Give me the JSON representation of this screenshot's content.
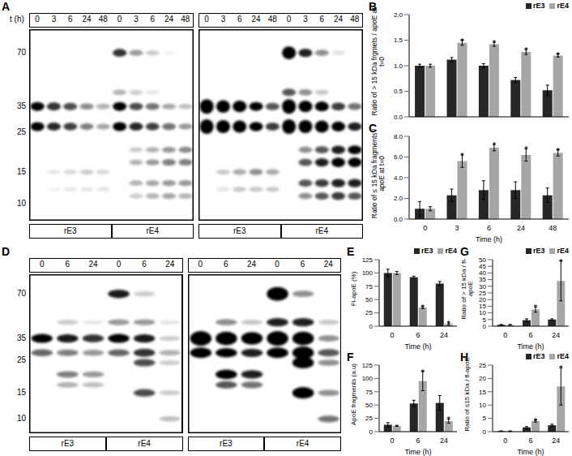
{
  "blots": [
    {
      "panel": "A",
      "time_label": "t (h)",
      "samples": [
        "rE3",
        "rE4"
      ],
      "times": [
        0,
        3,
        6,
        24,
        48
      ],
      "markers": [
        70,
        35,
        25,
        15,
        10
      ]
    },
    {
      "panel": "D",
      "samples": [
        "rE3",
        "rE4"
      ],
      "times": [
        0,
        6,
        24
      ],
      "markers": [
        70,
        35,
        25,
        15,
        10
      ]
    }
  ],
  "chart_data": [
    {
      "panel": "B",
      "type": "bar",
      "y_label": "Ratio of > 15 kDa frgmets / apoE at t=0",
      "categories": [
        "0",
        "3",
        "6",
        "24",
        "48"
      ],
      "tick_labels": "y",
      "ylim": [
        0,
        2
      ],
      "yticks": [
        {
          "value": 0,
          "label": "0.0"
        },
        {
          "value": 0.5,
          "label": "0.5"
        },
        {
          "value": 1,
          "label": "1.0"
        },
        {
          "value": 1.5,
          "label": "1.5"
        },
        {
          "value": 2,
          "label": "2.0"
        }
      ],
      "legend": "top",
      "grid": false,
      "series": [
        {
          "name": "rE3",
          "color": "#262626",
          "values": [
            1.0,
            1.12,
            1.0,
            0.72,
            0.52
          ],
          "errors": [
            0.03,
            0.04,
            0.04,
            0.05,
            0.1
          ],
          "annotations": [
            null,
            null,
            null,
            null,
            null
          ]
        },
        {
          "name": "rE4",
          "color": "#a6a6a6",
          "values": [
            1.0,
            1.45,
            1.42,
            1.27,
            1.2
          ],
          "errors": [
            0.03,
            0.05,
            0.04,
            0.05,
            0.03
          ],
          "annotations": [
            null,
            "*",
            "*",
            "*",
            "*"
          ]
        }
      ]
    },
    {
      "panel": "C",
      "type": "bar",
      "y_label": "Ratio of ≤ 15 kDa fragments / apoE at t=0",
      "x_label": "Time (h)",
      "categories": [
        "0",
        "3",
        "6",
        "24",
        "48"
      ],
      "ylim": [
        0,
        8
      ],
      "yticks": [
        {
          "value": 0,
          "label": "0.0"
        },
        {
          "value": 2,
          "label": "2.0"
        },
        {
          "value": 4,
          "label": "4.0"
        },
        {
          "value": 6,
          "label": "6.0"
        },
        {
          "value": 8,
          "label": "8.0"
        }
      ],
      "grid": false,
      "series": [
        {
          "name": "rE3",
          "color": "#262626",
          "values": [
            1.0,
            2.3,
            2.8,
            2.8,
            2.3
          ],
          "errors": [
            0.7,
            0.6,
            0.9,
            0.8,
            0.7
          ],
          "annotations": [
            null,
            null,
            null,
            null,
            null
          ]
        },
        {
          "name": "rE4",
          "color": "#a6a6a6",
          "values": [
            1.0,
            5.6,
            6.9,
            6.2,
            6.4
          ],
          "errors": [
            0.2,
            0.6,
            0.3,
            0.6,
            0.3
          ],
          "annotations": [
            null,
            "*",
            "*",
            "*",
            "*"
          ]
        }
      ]
    },
    {
      "panel": "E",
      "type": "bar",
      "y_label": "Fl-apoE (%)",
      "x_label": "Time (h)",
      "categories": [
        "0",
        "6",
        "24"
      ],
      "ylim": [
        0,
        125
      ],
      "yticks": [
        0,
        25,
        50,
        75,
        100,
        125
      ],
      "legend": "top",
      "grid": false,
      "series": [
        {
          "name": "rE3",
          "color": "#262626",
          "values": [
            100,
            92,
            80
          ],
          "errors": [
            7,
            2,
            4
          ],
          "annotations": [
            null,
            null,
            null
          ]
        },
        {
          "name": "rE4",
          "color": "#a6a6a6",
          "values": [
            100,
            35,
            4
          ],
          "errors": [
            3,
            2,
            2
          ],
          "annotations": [
            null,
            "*",
            "*"
          ]
        }
      ]
    },
    {
      "panel": "F",
      "type": "bar",
      "y_label": "ApoE fragments (a.u)",
      "x_label": "Time (h)",
      "categories": [
        "0",
        "6",
        "24"
      ],
      "ylim": [
        0,
        125
      ],
      "yticks": [
        0,
        25,
        50,
        75,
        100,
        125
      ],
      "grid": false,
      "series": [
        {
          "name": "rE3",
          "color": "#262626",
          "values": [
            13,
            53,
            54
          ],
          "errors": [
            4,
            6,
            14
          ],
          "annotations": [
            null,
            null,
            null
          ]
        },
        {
          "name": "rE4",
          "color": "#a6a6a6",
          "values": [
            11,
            95,
            20
          ],
          "errors": [
            1,
            18,
            4
          ],
          "annotations": [
            null,
            "*",
            "*"
          ]
        }
      ]
    },
    {
      "panel": "G",
      "type": "bar",
      "y_label": "Ratio of > 15 kDa / fl-apoE",
      "x_label": "Time (h)",
      "categories": [
        "0",
        "6",
        "24"
      ],
      "ylim": [
        0,
        50
      ],
      "yticks": [
        0,
        5,
        10,
        15,
        20,
        25,
        30,
        35,
        40,
        45,
        50
      ],
      "legend": "top",
      "grid": false,
      "series": [
        {
          "name": "rE3",
          "color": "#262626",
          "values": [
            1,
            4.5,
            5
          ],
          "errors": [
            0.3,
            1,
            0.5
          ],
          "annotations": [
            null,
            null,
            null
          ]
        },
        {
          "name": "rE4",
          "color": "#a6a6a6",
          "values": [
            1,
            12.5,
            34
          ],
          "errors": [
            0.3,
            2,
            15
          ],
          "annotations": [
            null,
            "*",
            "*"
          ]
        }
      ]
    },
    {
      "panel": "H",
      "type": "bar",
      "y_label": "Ratio of ≤15 kDa / fl-apoE",
      "x_label": "Time (h)",
      "categories": [
        "0",
        "6",
        "24"
      ],
      "ylim": [
        0,
        25
      ],
      "yticks": [
        0,
        5,
        10,
        15,
        20,
        25
      ],
      "legend": "top",
      "grid": false,
      "series": [
        {
          "name": "rE3",
          "color": "#262626",
          "values": [
            0.2,
            1.6,
            2.4
          ],
          "errors": [
            0.1,
            0.3,
            0.4
          ],
          "annotations": [
            null,
            null,
            null
          ]
        },
        {
          "name": "rE4",
          "color": "#a6a6a6",
          "values": [
            0.2,
            4,
            17
          ],
          "errors": [
            0.1,
            0.4,
            7
          ],
          "annotations": [
            null,
            "*",
            "*"
          ]
        }
      ]
    }
  ]
}
